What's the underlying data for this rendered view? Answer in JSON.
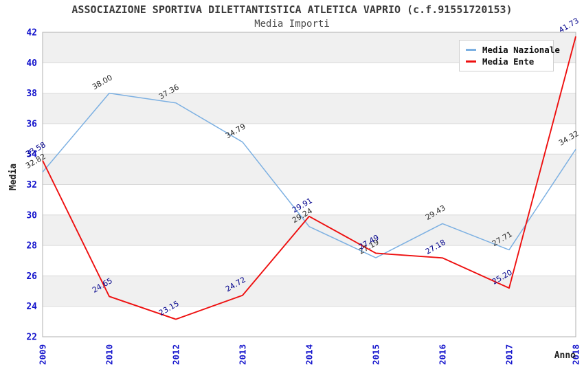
{
  "chart_data": {
    "type": "line",
    "title": "ASSOCIAZIONE SPORTIVA DILETTANTISTICA ATLETICA VAPRIO (c.f.91551720153)",
    "subtitle": "Media Importi",
    "xlabel": "Anno",
    "ylabel": "Media",
    "categories": [
      "2009",
      "2010",
      "2012",
      "2013",
      "2014",
      "2015",
      "2016",
      "2017",
      "2018"
    ],
    "series": [
      {
        "name": "Media Nazionale",
        "color": "#7cb0e2",
        "label_color": "#2b2b2b",
        "values": [
          32.82,
          38.0,
          37.36,
          34.79,
          29.24,
          27.19,
          29.43,
          27.71,
          34.32
        ]
      },
      {
        "name": "Media Ente",
        "color": "#ee0f0f",
        "label_color": "#00008b",
        "values": [
          33.58,
          24.65,
          23.15,
          24.72,
          29.91,
          27.49,
          27.18,
          25.2,
          41.73
        ]
      }
    ],
    "ylim": [
      22,
      42
    ],
    "ytick_step": 2,
    "grid": "horizontal",
    "legend_position": "top-right",
    "band_color": "#f0f0f0",
    "grid_color": "#d9d9d9",
    "plot_border_color": "#b0b0b0",
    "axis_tick_color": "#1414cc",
    "label_decimals": 2
  }
}
